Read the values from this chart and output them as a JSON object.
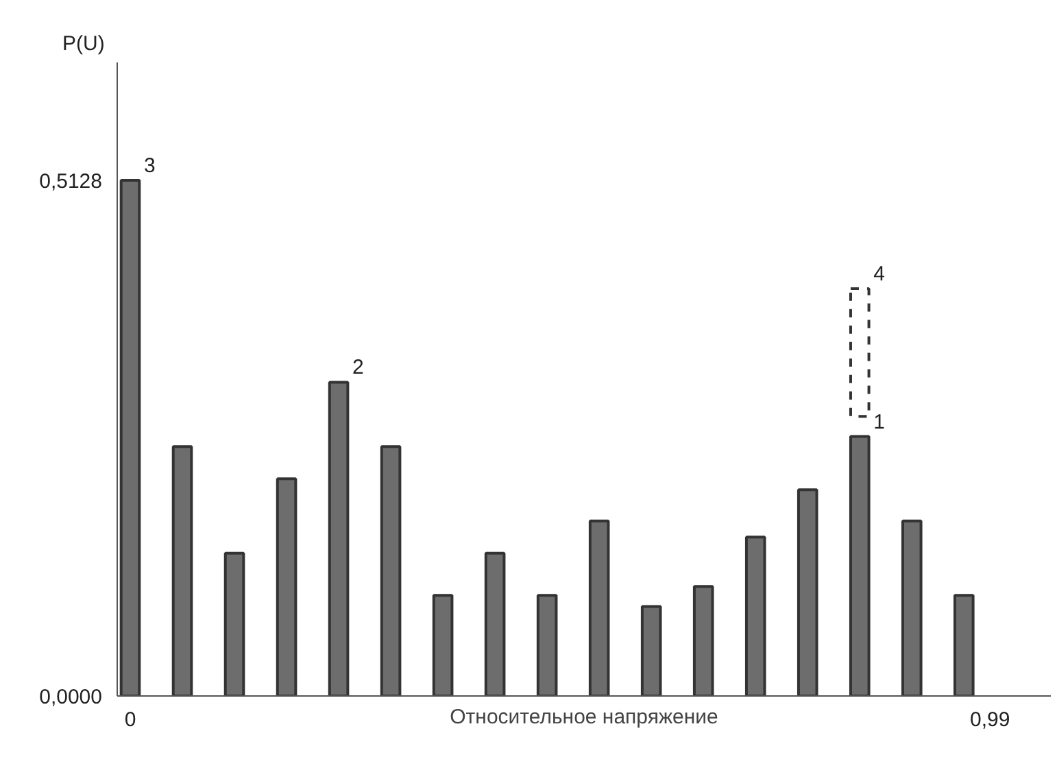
{
  "chart_data": {
    "type": "bar",
    "xlabel": "Относительное напряжение",
    "ylabel": "P(U)",
    "x": [
      0,
      0.06,
      0.12,
      0.18,
      0.24,
      0.3,
      0.36,
      0.42,
      0.48,
      0.54,
      0.6,
      0.66,
      0.72,
      0.78,
      0.84,
      0.9,
      0.96
    ],
    "series": [
      {
        "color": "#6d6d6d",
        "values": [
          0.5128,
          0.248,
          0.142,
          0.216,
          0.312,
          0.248,
          0.1,
          0.142,
          0.1,
          0.174,
          0.089,
          0.109,
          0.158,
          0.205,
          0.258,
          0.174,
          0.1
        ]
      },
      {
        "color": "#333333",
        "line_style": "dashed",
        "x": [
          0.84
        ],
        "base": [
          0.278
        ],
        "values": [
          0.127
        ]
      }
    ],
    "xlim": [
      -0.015,
      1.06
    ],
    "ylim": [
      0,
      0.63
    ],
    "xticks": [
      0,
      {
        "value": 0.99,
        "label": "0,99"
      }
    ],
    "yticks": [
      {
        "value": 0,
        "label": "0,0000"
      },
      {
        "value": 0.5128,
        "label": "0,5128"
      }
    ],
    "annotations": [
      {
        "text": "3",
        "x": 0,
        "y": 0.5128
      },
      {
        "text": "2",
        "x": 0.24,
        "y": 0.312
      },
      {
        "text": "1",
        "x": 0.84,
        "y": 0.258
      },
      {
        "text": "4",
        "x": 0.84,
        "y": 0.405
      }
    ],
    "grid": false
  }
}
